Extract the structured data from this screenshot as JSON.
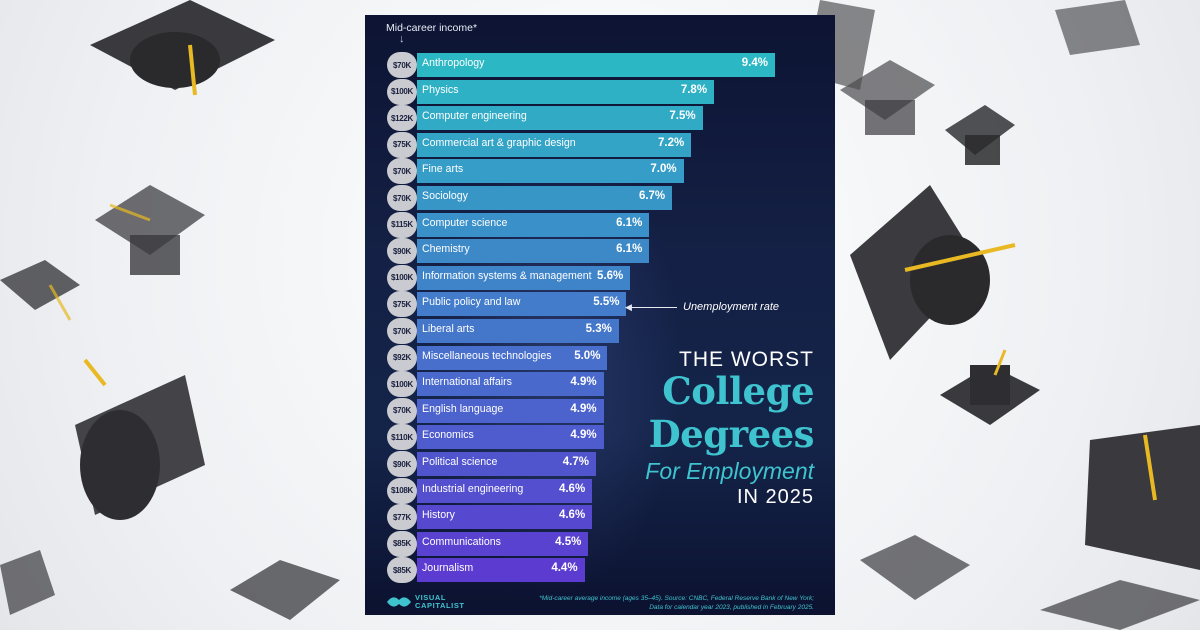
{
  "chart_data": {
    "type": "bar",
    "orientation": "horizontal",
    "title": "THE WORST College Degrees For Employment IN 2025",
    "title_parts": [
      "THE WORST",
      "College",
      "Degrees",
      "For Employment",
      "IN 2025"
    ],
    "income_label": "Mid-career income*",
    "annotation": "Unemployment rate",
    "xlim": [
      0,
      9.4
    ],
    "grid": false,
    "legend": "none",
    "categories": [
      "Anthropology",
      "Physics",
      "Computer engineering",
      "Commercial art & graphic design",
      "Fine arts",
      "Sociology",
      "Computer science",
      "Chemistry",
      "Information systems & management",
      "Public policy and law",
      "Liberal arts",
      "Miscellaneous technologies",
      "International affairs",
      "English language",
      "Economics",
      "Political science",
      "Industrial engineering",
      "History",
      "Communications",
      "Journalism"
    ],
    "values": [
      9.4,
      7.8,
      7.5,
      7.2,
      7.0,
      6.7,
      6.1,
      6.1,
      5.6,
      5.5,
      5.3,
      5.0,
      4.9,
      4.9,
      4.9,
      4.7,
      4.6,
      4.6,
      4.5,
      4.4
    ],
    "value_labels": [
      "9.4%",
      "7.8%",
      "7.5%",
      "7.2%",
      "7.0%",
      "6.7%",
      "6.1%",
      "6.1%",
      "5.6%",
      "5.5%",
      "5.3%",
      "5.0%",
      "4.9%",
      "4.9%",
      "4.9%",
      "4.7%",
      "4.6%",
      "4.6%",
      "4.5%",
      "4.4%"
    ],
    "income": [
      "$70K",
      "$100K",
      "$122K",
      "$75K",
      "$70K",
      "$70K",
      "$115K",
      "$90K",
      "$100K",
      "$75K",
      "$70K",
      "$92K",
      "$100K",
      "$70K",
      "$110K",
      "$90K",
      "$108K",
      "$77K",
      "$85K",
      "$85K"
    ],
    "footnote": "*Mid-career average income (ages 35–45). Source: CNBC, Federal Reserve Bank of New York; Data for calendar year 2023, published in February 2025.",
    "source_brand": [
      "VISUAL",
      "CAPITALIST"
    ]
  },
  "colors": {
    "bar_top": "#2bb7c4",
    "bar_bottom": "#5b3bd0",
    "accent": "#3fc3cf",
    "badge": "#c9cbd0",
    "card_background": "#141f45",
    "cap": "#3a3a3e",
    "tassel": "#e8b923"
  },
  "icons": [
    "graduation-cap-icon",
    "visual-capitalist-logo-icon"
  ]
}
